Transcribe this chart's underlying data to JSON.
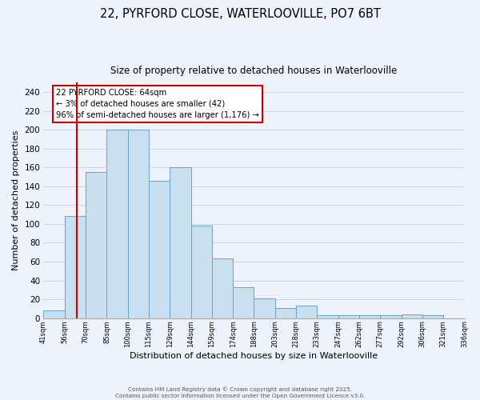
{
  "title": "22, PYRFORD CLOSE, WATERLOOVILLE, PO7 6BT",
  "subtitle": "Size of property relative to detached houses in Waterlooville",
  "bar_values": [
    8,
    108,
    155,
    200,
    200,
    146,
    160,
    98,
    63,
    33,
    21,
    11,
    13,
    3,
    3,
    3,
    3,
    4,
    3
  ],
  "bin_labels": [
    "41sqm",
    "56sqm",
    "70sqm",
    "85sqm",
    "100sqm",
    "115sqm",
    "129sqm",
    "144sqm",
    "159sqm",
    "174sqm",
    "188sqm",
    "203sqm",
    "218sqm",
    "233sqm",
    "247sqm",
    "262sqm",
    "277sqm",
    "292sqm",
    "306sqm",
    "321sqm",
    "336sqm"
  ],
  "bar_color": "#c8dff0",
  "bar_edge_color": "#6aa0c8",
  "grid_color": "#ccd8e8",
  "background_color": "#eef2fa",
  "xlabel": "Distribution of detached houses by size in Waterlooville",
  "ylabel": "Number of detached properties",
  "ylim": [
    0,
    250
  ],
  "yticks": [
    0,
    20,
    40,
    60,
    80,
    100,
    120,
    140,
    160,
    180,
    200,
    220,
    240
  ],
  "property_line_color": "#cc0000",
  "annotation_title": "22 PYRFORD CLOSE: 64sqm",
  "annotation_line1": "← 3% of detached houses are smaller (42)",
  "annotation_line2": "96% of semi-detached houses are larger (1,176) →",
  "annotation_box_color": "#ffffff",
  "annotation_box_edge": "#cc0000",
  "footer_line1": "Contains HM Land Registry data © Crown copyright and database right 2025.",
  "footer_line2": "Contains public sector information licensed under the Open Government Licence v3.0."
}
